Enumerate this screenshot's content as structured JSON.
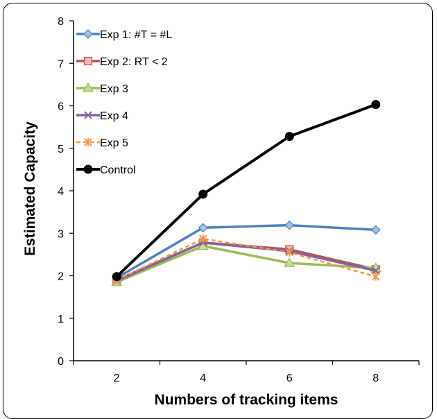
{
  "chart_data": {
    "type": "line",
    "title": "",
    "xlabel": "Numbers of tracking items",
    "ylabel": "Estimated Capacity",
    "x": [
      2,
      4,
      6,
      8
    ],
    "xlim": [
      1,
      9
    ],
    "ylim": [
      0,
      8
    ],
    "xticks": [
      "2",
      "4",
      "6",
      "8"
    ],
    "yticks": [
      "0",
      "1",
      "2",
      "3",
      "4",
      "5",
      "6",
      "7",
      "8"
    ],
    "grid": false,
    "legend_position": "top-left",
    "series": [
      {
        "name": "Exp 1: #T = #L",
        "values": [
          1.95,
          3.13,
          3.19,
          3.08
        ],
        "color": "#4f81bd",
        "marker": "diamond"
      },
      {
        "name": "Exp 2: RT < 2",
        "values": [
          1.9,
          2.78,
          2.62,
          2.15
        ],
        "color": "#c0504d",
        "marker": "square"
      },
      {
        "name": "Exp 3",
        "values": [
          1.85,
          2.7,
          2.3,
          2.18
        ],
        "color": "#9bbb59",
        "marker": "triangle"
      },
      {
        "name": "Exp 4",
        "values": [
          1.88,
          2.78,
          2.58,
          2.12
        ],
        "color": "#8064a2",
        "marker": "x"
      },
      {
        "name": "Exp 5",
        "values": [
          1.9,
          2.87,
          2.55,
          1.98
        ],
        "color": "#f79646",
        "marker": "star",
        "dashed": true
      },
      {
        "name": "Control",
        "values": [
          1.98,
          3.92,
          5.28,
          6.03
        ],
        "color": "#000000",
        "marker": "circle"
      }
    ]
  }
}
